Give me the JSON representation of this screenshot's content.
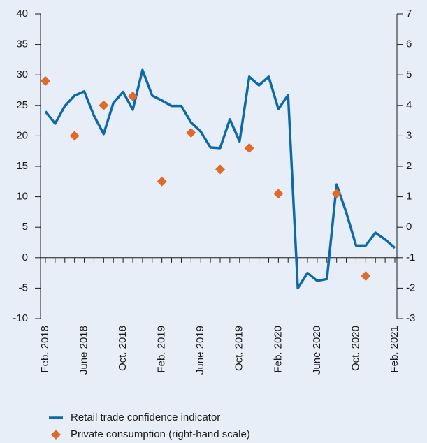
{
  "chart_data": {
    "type": "line",
    "categories": [
      "Feb. 2018",
      null,
      null,
      null,
      "June 2018",
      null,
      null,
      null,
      "Oct. 2018",
      null,
      null,
      null,
      "Feb. 2019",
      null,
      null,
      null,
      "June 2019",
      null,
      null,
      null,
      "Oct. 2019",
      null,
      null,
      null,
      "Feb. 2020",
      null,
      null,
      null,
      "June 2020",
      null,
      null,
      null,
      "Oct. 2020",
      null,
      null,
      null,
      "Feb. 2021"
    ],
    "series": [
      {
        "name": "Retail trade confidence indicator",
        "color": "#0d6aa8",
        "values": [
          24,
          22,
          24.9,
          26.6,
          27.3,
          23.3,
          20.3,
          25.4,
          27.2,
          24.3,
          30.8,
          26.6,
          25.8,
          24.9,
          24.9,
          22.2,
          20.7,
          18.1,
          18,
          22.7,
          19.1,
          29.7,
          28.3,
          29.7,
          24.4,
          26.7,
          -5,
          -2.5,
          -3.8,
          -3.5,
          12,
          7.4,
          2,
          2,
          4.1,
          3,
          1.6
        ]
      },
      {
        "name": "Private consumption (right-hand scale)",
        "color": "#e06a2a",
        "axis": "y2",
        "marker": "diamond",
        "values": [
          4.8,
          null,
          null,
          3.0,
          null,
          null,
          4.0,
          null,
          null,
          4.3,
          null,
          null,
          1.5,
          null,
          null,
          3.1,
          null,
          null,
          1.9,
          null,
          null,
          2.6,
          null,
          null,
          1.1,
          null,
          null,
          null,
          null,
          null,
          1.1,
          null,
          null,
          -1.6,
          null,
          null,
          null
        ]
      }
    ],
    "ylim": [
      -10,
      40
    ],
    "yticks": [
      -10,
      -5,
      0,
      5,
      10,
      15,
      20,
      25,
      30,
      35,
      40
    ],
    "y2lim": [
      -3,
      7
    ],
    "y2ticks": [
      -3,
      -2,
      -1,
      0,
      1,
      2,
      3,
      4,
      5,
      6,
      7
    ],
    "legend": "bottom-left"
  }
}
